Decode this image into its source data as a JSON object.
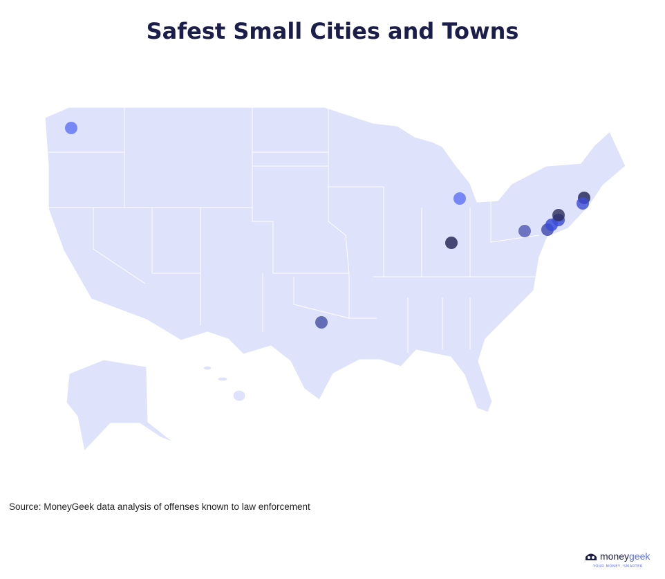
{
  "title": "Safest Small Cities and Towns",
  "source": "Source: MoneyGeek data analysis of offenses known to law enforcement",
  "logo": {
    "name_first": "money",
    "name_second": "geek",
    "tagline": "YOUR MONEY, SMARTER"
  }
}
